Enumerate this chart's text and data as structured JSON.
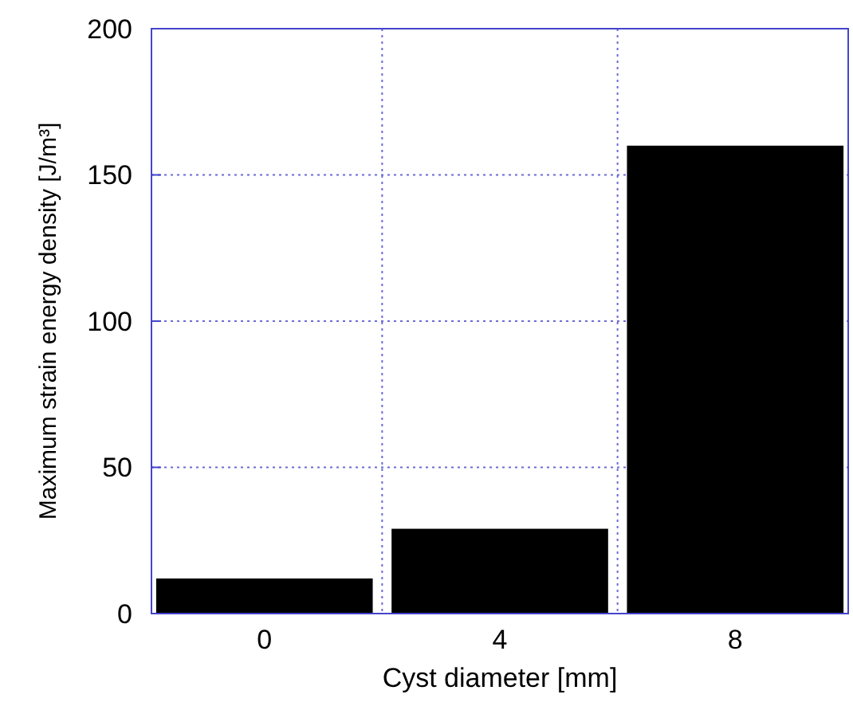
{
  "chart_data": {
    "type": "bar",
    "categories": [
      "0",
      "4",
      "8"
    ],
    "values": [
      12,
      29,
      160
    ],
    "color": "#000000",
    "xlabel": "Cyst diameter [mm]",
    "ylabel": "Maximum strain energy density [J/m³]",
    "ylim": [
      0,
      200
    ],
    "yticks": [
      0,
      50,
      100,
      150,
      200
    ],
    "grid": true
  }
}
